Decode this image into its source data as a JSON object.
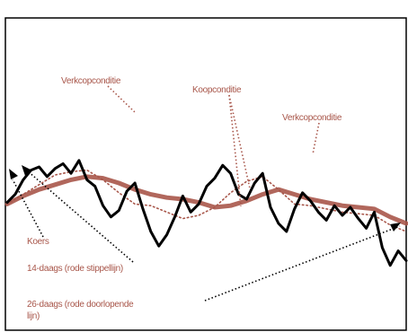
{
  "chart_data": {
    "type": "line",
    "title": "",
    "xlabel": "",
    "ylabel": "",
    "ylim": [
      0,
      100
    ],
    "xlim": [
      0,
      100
    ],
    "grid": false,
    "series": [
      {
        "name": "Koers",
        "color": "#000000",
        "style": "solid-jagged",
        "x": [
          0,
          2,
          4,
          6,
          8,
          10,
          12,
          14,
          16,
          18,
          20,
          22,
          24,
          26,
          28,
          30,
          32,
          34,
          36,
          38,
          40,
          42,
          44,
          46,
          48,
          50,
          52,
          54,
          56,
          58,
          60,
          62,
          64,
          66,
          68,
          70,
          72,
          74,
          76,
          78,
          80,
          82,
          84,
          86,
          88,
          90,
          92,
          94,
          96,
          98,
          100
        ],
        "values": [
          58,
          63,
          72,
          78,
          80,
          74,
          79,
          82,
          76,
          84,
          72,
          68,
          56,
          49,
          53,
          65,
          70,
          54,
          40,
          31,
          38,
          49,
          62,
          52,
          57,
          68,
          73,
          81,
          76,
          63,
          60,
          70,
          76,
          55,
          45,
          40,
          54,
          64,
          59,
          52,
          47,
          56,
          50,
          55,
          48,
          42,
          52,
          30,
          19,
          28,
          22
        ]
      },
      {
        "name": "14-daags",
        "color": "#a8564a",
        "style": "dotted",
        "x": [
          0,
          4,
          8,
          12,
          16,
          20,
          24,
          28,
          32,
          36,
          40,
          44,
          48,
          52,
          56,
          60,
          64,
          68,
          72,
          76,
          80,
          84,
          88,
          92,
          96,
          100
        ],
        "values": [
          57,
          63,
          69,
          75,
          77,
          78,
          72,
          64,
          57,
          56,
          52,
          48,
          50,
          55,
          64,
          71,
          74,
          66,
          57,
          56,
          54,
          52,
          51,
          50,
          44,
          40
        ]
      },
      {
        "name": "26-daags",
        "color": "#a8564a",
        "style": "solid",
        "x": [
          0,
          4,
          8,
          12,
          16,
          20,
          24,
          28,
          32,
          36,
          40,
          44,
          48,
          52,
          56,
          60,
          64,
          68,
          72,
          76,
          80,
          84,
          88,
          92,
          96,
          100
        ],
        "values": [
          57,
          62,
          66,
          69,
          72,
          74,
          73,
          70,
          66,
          63,
          61,
          60,
          58,
          55,
          56,
          59,
          63,
          66,
          63,
          60,
          58,
          56,
          55,
          54,
          49,
          45
        ]
      }
    ],
    "annotations": [
      {
        "text": "Verkoopconditie",
        "lines": [
          "Verkcopconditie"
        ]
      },
      {
        "text": "Koopconditie",
        "lines": [
          "Koopconditie"
        ]
      },
      {
        "text": "Verkoopconditie 2",
        "lines": [
          "Verkcopconditie"
        ]
      },
      {
        "text": "Koers",
        "lines": [
          "Koers"
        ]
      },
      {
        "text": "14-daags",
        "lines": [
          "14-daags (rode stippellijn)"
        ]
      },
      {
        "text": "26-daags",
        "lines": [
          "26-daags (rode doorlopende",
          "lijn)"
        ]
      }
    ]
  }
}
